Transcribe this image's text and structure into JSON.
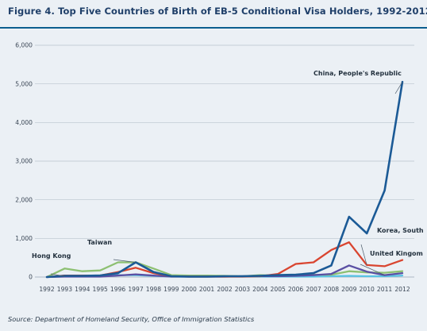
{
  "title": "Figure 4. Top Five Countries of Birth of EB-5 Conditional Visa Holders, 1992-2012",
  "source": "Source: Department of Homeland Security, Office of Immigration Statistics",
  "chart_data": {
    "type": "line",
    "title": "Figure 4. Top Five Countries of Birth of EB-5 Conditional Visa Holders, 1992-2012",
    "xlabel": "",
    "ylabel": "",
    "ylim": [
      0,
      6000
    ],
    "yticks": [
      0,
      1000,
      2000,
      3000,
      4000,
      5000,
      6000
    ],
    "ytick_labels": [
      "0",
      "1,000",
      "2,000",
      "3,000",
      "4,000",
      "5,000",
      "6,000"
    ],
    "grid": "horizontal",
    "legend": "none",
    "x": [
      "1992",
      "1993",
      "1994",
      "1995",
      "1996",
      "1997",
      "1998",
      "1999",
      "2000",
      "2001",
      "2002",
      "2003",
      "2004",
      "2005",
      "2006",
      "2007",
      "2008",
      "2009",
      "2010",
      "2011",
      "2012"
    ],
    "series": [
      {
        "name": "China, People's Republic",
        "color": "#1b5a96",
        "values": [
          0,
          30,
          30,
          40,
          100,
          380,
          130,
          20,
          10,
          10,
          20,
          20,
          30,
          50,
          60,
          100,
          300,
          1560,
          1130,
          2240,
          5050
        ]
      },
      {
        "name": "Korea, South",
        "color": "#d94530",
        "values": [
          0,
          40,
          40,
          40,
          130,
          240,
          100,
          20,
          10,
          10,
          10,
          10,
          20,
          80,
          340,
          380,
          700,
          900,
          310,
          280,
          440
        ]
      },
      {
        "name": "United Kingom",
        "color": "#5a4fa3",
        "values": [
          0,
          10,
          10,
          10,
          40,
          70,
          40,
          10,
          10,
          10,
          10,
          20,
          20,
          20,
          30,
          50,
          80,
          300,
          140,
          50,
          100
        ]
      },
      {
        "name": "Taiwan",
        "color": "#8dc072",
        "values": [
          0,
          220,
          150,
          170,
          380,
          380,
          220,
          50,
          40,
          40,
          30,
          20,
          50,
          40,
          40,
          60,
          60,
          150,
          120,
          110,
          150
        ]
      },
      {
        "name": "Hong Kong",
        "color": "#58c3e4",
        "values": [
          0,
          20,
          20,
          30,
          50,
          50,
          30,
          10,
          10,
          10,
          10,
          10,
          10,
          10,
          10,
          10,
          20,
          30,
          20,
          20,
          40
        ]
      }
    ]
  }
}
